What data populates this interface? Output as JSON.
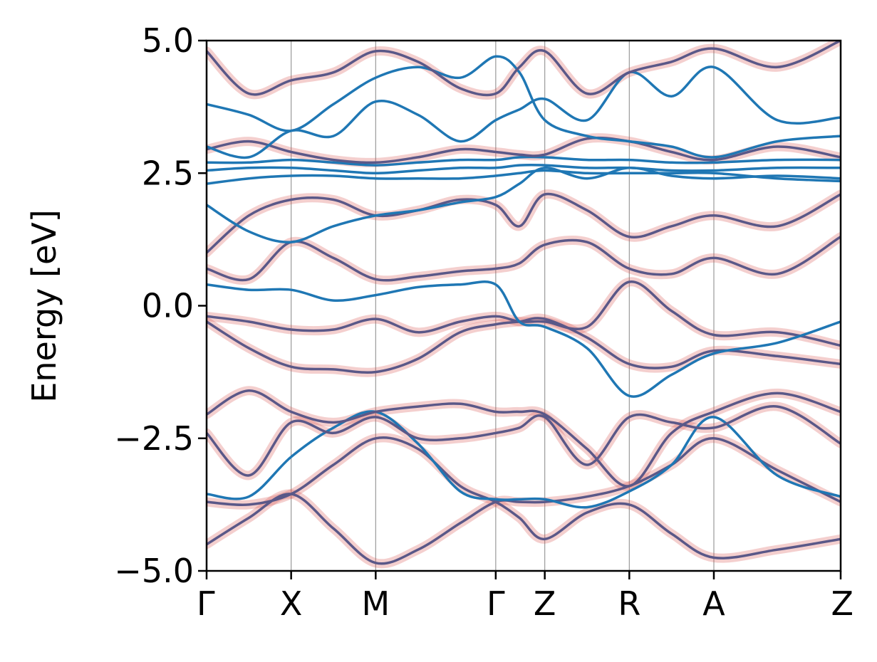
{
  "chart_data": {
    "type": "line",
    "title": "",
    "xlabel": "",
    "ylabel": "Energy [eV]",
    "ylim": [
      -5.0,
      5.0
    ],
    "xlim": [
      0,
      7.5
    ],
    "y_ticks": [
      {
        "value": -5.0,
        "label": "−5.0"
      },
      {
        "value": -2.5,
        "label": "−2.5"
      },
      {
        "value": 0.0,
        "label": "0.0"
      },
      {
        "value": 2.5,
        "label": "2.5"
      },
      {
        "value": 5.0,
        "label": "5.0"
      }
    ],
    "k_points": [
      {
        "label": "Γ",
        "position": 0.0
      },
      {
        "label": "X",
        "position": 1.0
      },
      {
        "label": "M",
        "position": 2.0
      },
      {
        "label": "Γ",
        "position": 3.42
      },
      {
        "label": "Z",
        "position": 4.0
      },
      {
        "label": "R",
        "position": 5.0
      },
      {
        "label": "A",
        "position": 6.0
      },
      {
        "label": "Z",
        "position": 7.5
      }
    ],
    "grid": "vertical lines at high-symmetry k-points",
    "colors": {
      "band": "#1f77b4",
      "projected_band": "#5a5888",
      "projection_fat": "#d9534f",
      "vline": "#9a9a9a"
    },
    "series": [
      {
        "x": [
          0,
          0.5,
          1,
          1.5,
          2,
          2.5,
          3,
          3.42,
          3.7,
          4,
          4.5,
          5,
          5.5,
          6,
          6.75,
          7.5
        ],
        "y": [
          -4.5,
          -4.0,
          -3.55,
          -4.2,
          -4.85,
          -4.6,
          -4.1,
          -3.7,
          -3.7,
          -3.7,
          -3.6,
          -3.4,
          -3.0,
          -2.5,
          -3.1,
          -3.7
        ],
        "projected": true
      },
      {
        "x": [
          0,
          0.5,
          1,
          1.5,
          2,
          2.5,
          3,
          3.42,
          3.7,
          4,
          4.5,
          5,
          5.5,
          6,
          6.75,
          7.5
        ],
        "y": [
          -3.7,
          -3.75,
          -3.55,
          -3.0,
          -2.5,
          -2.7,
          -3.4,
          -3.7,
          -4.0,
          -4.4,
          -3.9,
          -3.75,
          -4.3,
          -4.75,
          -4.6,
          -4.4
        ],
        "projected": true
      },
      {
        "x": [
          0,
          0.5,
          1,
          1.5,
          2,
          2.5,
          3,
          3.42,
          3.7,
          4,
          4.5,
          5,
          5.5,
          6,
          6.75,
          7.5
        ],
        "y": [
          -3.55,
          -3.6,
          -2.85,
          -2.3,
          -2.0,
          -2.6,
          -3.5,
          -3.65,
          -3.65,
          -3.65,
          -3.8,
          -3.5,
          -3.0,
          -2.1,
          -3.2,
          -3.6
        ],
        "projected": false
      },
      {
        "x": [
          0,
          0.5,
          1,
          1.5,
          2,
          2.5,
          3,
          3.42,
          3.7,
          4,
          4.5,
          5,
          5.5,
          6,
          6.75,
          7.5
        ],
        "y": [
          -2.05,
          -1.6,
          -2.0,
          -2.2,
          -2.0,
          -1.9,
          -1.85,
          -2.0,
          -2.0,
          -2.05,
          -2.7,
          -3.4,
          -2.4,
          -2.0,
          -1.65,
          -2.0
        ],
        "projected": true
      },
      {
        "x": [
          0,
          0.5,
          1,
          1.5,
          2,
          2.5,
          3,
          3.42,
          3.7,
          4,
          4.5,
          5,
          5.5,
          6,
          6.75,
          7.5
        ],
        "y": [
          -2.4,
          -3.2,
          -2.2,
          -2.4,
          -2.1,
          -2.5,
          -2.5,
          -2.4,
          -2.3,
          -2.1,
          -3.0,
          -2.1,
          -2.2,
          -2.3,
          -1.9,
          -2.6
        ],
        "projected": true
      },
      {
        "x": [
          0,
          0.5,
          1,
          1.5,
          2,
          2.5,
          3,
          3.42,
          3.7,
          4,
          4.5,
          5,
          5.5,
          6,
          6.75,
          7.5
        ],
        "y": [
          -0.3,
          -0.8,
          -1.15,
          -1.2,
          -1.25,
          -1.0,
          -0.5,
          -0.35,
          -0.3,
          -0.25,
          -0.6,
          -1.1,
          -1.15,
          -0.85,
          -0.95,
          -1.1
        ],
        "projected": true
      },
      {
        "x": [
          0,
          0.5,
          1,
          1.5,
          2,
          2.5,
          3,
          3.42,
          3.7,
          4,
          4.5,
          5,
          5.5,
          6,
          6.75,
          7.5
        ],
        "y": [
          -0.2,
          -0.3,
          -0.45,
          -0.45,
          -0.25,
          -0.5,
          -0.3,
          -0.2,
          -0.3,
          -0.3,
          -0.4,
          0.45,
          -0.1,
          -0.55,
          -0.5,
          -0.75
        ],
        "projected": true
      },
      {
        "x": [
          0,
          0.5,
          1,
          1.5,
          2,
          2.5,
          3,
          3.42,
          3.7,
          4,
          4.5,
          5,
          5.5,
          6,
          6.75,
          7.5
        ],
        "y": [
          0.4,
          0.3,
          0.3,
          0.1,
          0.2,
          0.35,
          0.4,
          0.4,
          -0.3,
          -0.4,
          -0.8,
          -1.7,
          -1.3,
          -0.9,
          -0.7,
          -0.3
        ],
        "projected": false
      },
      {
        "x": [
          0,
          0.5,
          1,
          1.5,
          2,
          2.5,
          3,
          3.42,
          3.7,
          4,
          4.5,
          5,
          5.5,
          6,
          6.75,
          7.5
        ],
        "y": [
          0.7,
          0.5,
          1.2,
          0.9,
          0.5,
          0.55,
          0.65,
          0.7,
          0.8,
          1.15,
          1.2,
          0.7,
          0.6,
          0.9,
          0.6,
          1.3
        ],
        "projected": true
      },
      {
        "x": [
          0,
          0.5,
          1,
          1.5,
          2,
          2.5,
          3,
          3.42,
          3.7,
          4,
          4.5,
          5,
          5.5,
          6,
          6.75,
          7.5
        ],
        "y": [
          1.0,
          1.7,
          2.0,
          2.0,
          1.7,
          1.8,
          2.0,
          1.9,
          1.5,
          2.1,
          1.8,
          1.3,
          1.5,
          1.7,
          1.5,
          2.1
        ],
        "projected": true
      },
      {
        "x": [
          0,
          0.5,
          1,
          1.5,
          2,
          2.5,
          3,
          3.42,
          3.7,
          4,
          4.5,
          5,
          5.5,
          6,
          6.75,
          7.5
        ],
        "y": [
          1.9,
          1.4,
          1.2,
          1.5,
          1.7,
          1.8,
          1.95,
          2.05,
          2.3,
          2.6,
          2.4,
          2.6,
          2.45,
          2.4,
          2.45,
          2.4
        ],
        "projected": false
      },
      {
        "x": [
          0,
          0.5,
          1,
          1.5,
          2,
          2.5,
          3,
          3.42,
          3.7,
          4,
          4.5,
          5,
          5.5,
          6,
          6.75,
          7.5
        ],
        "y": [
          2.3,
          2.4,
          2.45,
          2.45,
          2.4,
          2.4,
          2.4,
          2.45,
          2.5,
          2.55,
          2.5,
          2.5,
          2.5,
          2.5,
          2.4,
          2.35
        ],
        "projected": false
      },
      {
        "x": [
          0,
          0.5,
          1,
          1.5,
          2,
          2.5,
          3,
          3.42,
          3.7,
          4,
          4.5,
          5,
          5.5,
          6,
          6.75,
          7.5
        ],
        "y": [
          2.55,
          2.6,
          2.6,
          2.55,
          2.5,
          2.55,
          2.6,
          2.6,
          2.65,
          2.65,
          2.6,
          2.6,
          2.55,
          2.55,
          2.6,
          2.6
        ],
        "projected": false
      },
      {
        "x": [
          0,
          0.5,
          1,
          1.5,
          2,
          2.5,
          3,
          3.42,
          3.7,
          4,
          4.5,
          5,
          5.5,
          6,
          6.75,
          7.5
        ],
        "y": [
          2.7,
          2.7,
          2.75,
          2.7,
          2.65,
          2.7,
          2.75,
          2.75,
          2.8,
          2.8,
          2.75,
          2.75,
          2.7,
          2.7,
          2.75,
          2.75
        ],
        "projected": false
      },
      {
        "x": [
          0,
          0.5,
          1,
          1.5,
          2,
          2.5,
          3,
          3.42,
          3.7,
          4,
          4.5,
          5,
          5.5,
          6,
          6.75,
          7.5
        ],
        "y": [
          2.95,
          3.1,
          2.9,
          2.75,
          2.7,
          2.8,
          2.95,
          2.9,
          2.85,
          2.85,
          3.15,
          3.1,
          2.9,
          2.75,
          3.0,
          2.8
        ],
        "projected": true
      },
      {
        "x": [
          0,
          0.5,
          1,
          1.5,
          2,
          2.5,
          3,
          3.42,
          3.7,
          4,
          4.5,
          5,
          5.5,
          6,
          6.75,
          7.5
        ],
        "y": [
          3.0,
          2.8,
          3.3,
          3.2,
          3.85,
          3.6,
          3.1,
          3.5,
          3.7,
          3.9,
          3.5,
          4.4,
          3.95,
          4.5,
          3.5,
          3.55
        ],
        "projected": false
      },
      {
        "x": [
          0,
          0.5,
          1,
          1.5,
          2,
          2.5,
          3,
          3.42,
          3.7,
          4,
          4.5,
          5,
          5.5,
          6,
          6.75,
          7.5
        ],
        "y": [
          3.8,
          3.6,
          3.3,
          3.8,
          4.3,
          4.5,
          4.3,
          4.7,
          4.4,
          3.5,
          3.2,
          3.1,
          3.0,
          2.8,
          3.1,
          3.2
        ],
        "projected": false
      },
      {
        "x": [
          0,
          0.5,
          1,
          1.5,
          2,
          2.5,
          3,
          3.42,
          3.7,
          4,
          4.5,
          5,
          5.5,
          6,
          6.75,
          7.5
        ],
        "y": [
          4.8,
          4.0,
          4.25,
          4.4,
          4.8,
          4.6,
          4.1,
          4.0,
          4.5,
          4.8,
          4.0,
          4.4,
          4.6,
          4.85,
          4.5,
          5.0
        ],
        "projected": true
      }
    ]
  }
}
